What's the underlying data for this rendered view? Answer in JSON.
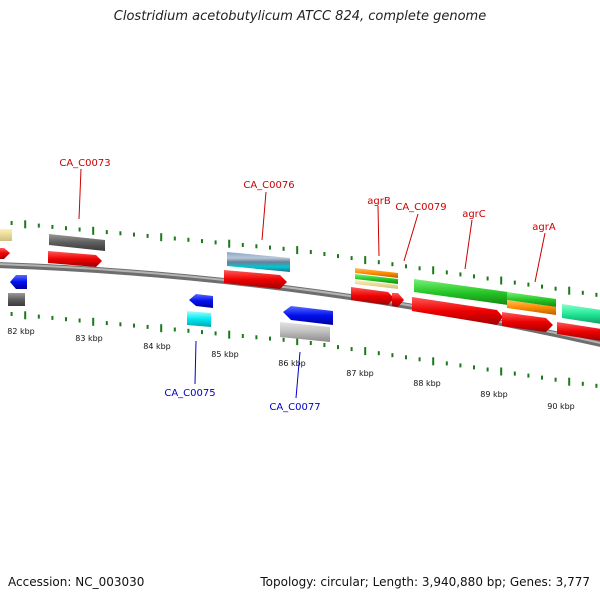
{
  "header": {
    "title": "Clostridium acetobutylicum ATCC 824, complete genome"
  },
  "footer": {
    "accession": "Accession: NC_003030",
    "summary": "Topology: circular; Length: 3,940,880 bp; Genes: 3,777"
  },
  "colors": {
    "forward_label": "#cc0000",
    "reverse_label": "#0000cc",
    "tick": "#1a7a1a",
    "backbone": "#808080"
  },
  "scale": {
    "ticks": [
      "82 kbp",
      "83 kbp",
      "84 kbp",
      "85 kbp",
      "86 kbp",
      "87 kbp",
      "88 kbp",
      "89 kbp",
      "90 kbp"
    ]
  },
  "labels": {
    "top": [
      "CA_C0073",
      "CA_C0076",
      "agrB",
      "CA_C0079",
      "agrC",
      "agrA"
    ],
    "bottom": [
      "CA_C0075",
      "CA_C0077"
    ]
  }
}
